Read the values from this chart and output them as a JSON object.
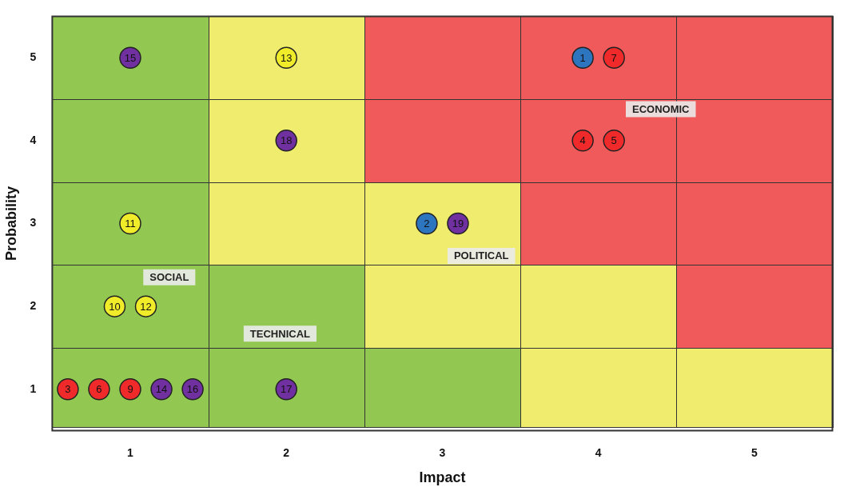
{
  "chart_data": {
    "type": "scatter",
    "xlabel": "Impact",
    "ylabel": "Probability",
    "xlim": [
      0.5,
      5.5
    ],
    "ylim": [
      0.5,
      5.5
    ],
    "xticks": [
      1,
      2,
      3,
      4,
      5
    ],
    "yticks": [
      1,
      2,
      3,
      4,
      5
    ],
    "marker": "circle",
    "series": [
      {
        "color": "#f02a2a",
        "x": [
          4.1,
          3.9,
          4.1,
          0.6,
          0.8,
          1.0
        ],
        "values": [
          5,
          4,
          4,
          1,
          1,
          1
        ]
      },
      {
        "color": "#2e75c0",
        "x": [
          3.9,
          2.9
        ],
        "values": [
          5,
          3
        ]
      },
      {
        "color": "#7030a0",
        "x": [
          1.0,
          2.0,
          3.1,
          1.2,
          1.4,
          2.0
        ],
        "values": [
          5,
          4,
          3,
          1,
          1,
          1
        ]
      },
      {
        "color": "#f0ec2a",
        "x": [
          2.0,
          1.0,
          0.9,
          1.1
        ],
        "values": [
          5,
          3,
          2,
          2
        ]
      }
    ],
    "annotations": [
      "ECONOMIC",
      "POLITICAL",
      "SOCIAL",
      "TECHNICAL",
      {
        "text": "7",
        "x": 4.1,
        "y": 5
      },
      {
        "text": "4",
        "x": 3.9,
        "y": 4
      },
      {
        "text": "5",
        "x": 4.1,
        "y": 4
      },
      {
        "text": "3",
        "x": 0.6,
        "y": 1
      },
      {
        "text": "6",
        "x": 0.8,
        "y": 1
      },
      {
        "text": "9",
        "x": 1.0,
        "y": 1
      },
      {
        "text": "1",
        "x": 3.9,
        "y": 5
      },
      {
        "text": "2",
        "x": 2.9,
        "y": 3
      },
      {
        "text": "15",
        "x": 1.0,
        "y": 5
      },
      {
        "text": "18",
        "x": 2.0,
        "y": 4
      },
      {
        "text": "19",
        "x": 3.1,
        "y": 3
      },
      {
        "text": "14",
        "x": 1.2,
        "y": 1
      },
      {
        "text": "16",
        "x": 1.4,
        "y": 1
      },
      {
        "text": "17",
        "x": 2.0,
        "y": 1
      },
      {
        "text": "13",
        "x": 2.0,
        "y": 5
      },
      {
        "text": "11",
        "x": 1.0,
        "y": 3
      },
      {
        "text": "10",
        "x": 0.9,
        "y": 2
      },
      {
        "text": "12",
        "x": 1.1,
        "y": 2
      }
    ]
  }
}
